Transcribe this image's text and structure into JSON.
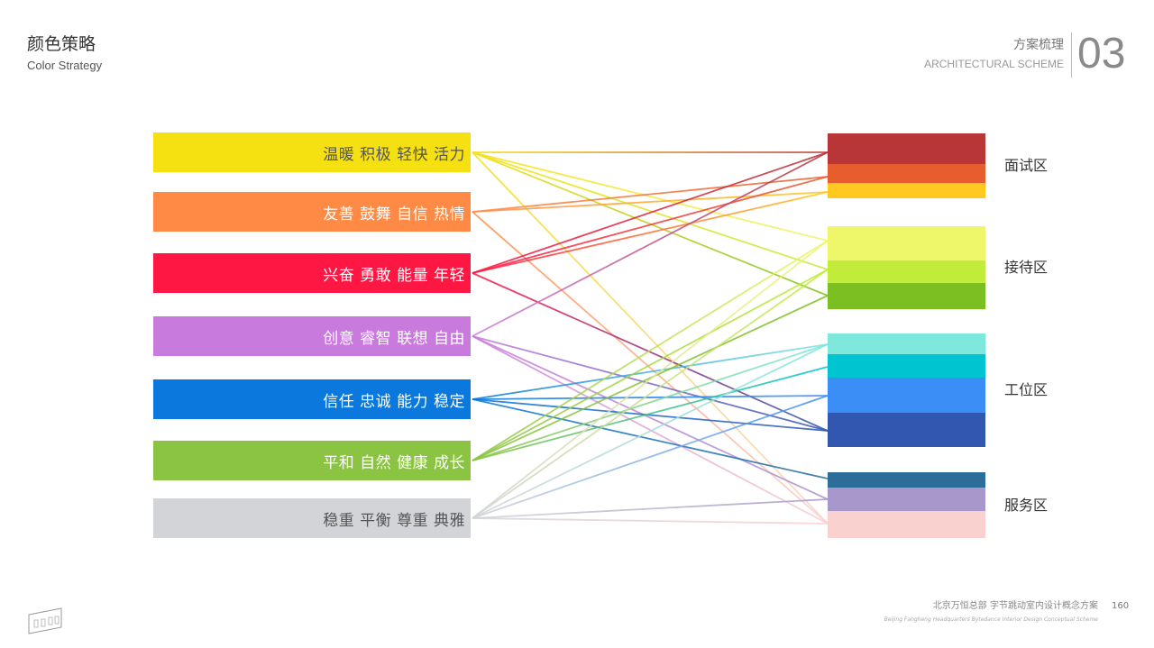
{
  "header": {
    "title": "颜色策略",
    "subtitle": "Color Strategy",
    "section_cn": "方案梳理",
    "section_en": "ARCHITECTURAL SCHEME",
    "section_number": "03"
  },
  "left_bars": [
    {
      "label": "温暖 积极 轻快 活力",
      "color": "#F5E012",
      "text_color": "#555555"
    },
    {
      "label": "友善 鼓舞 自信 热情",
      "color": "#FF8A45",
      "text_color": "#ffffff"
    },
    {
      "label": "兴奋 勇敢 能量 年轻",
      "color": "#FF1744",
      "text_color": "#ffffff"
    },
    {
      "label": "创意 睿智 联想 自由",
      "color": "#C97BDD",
      "text_color": "#ffffff"
    },
    {
      "label": "信任 忠诚 能力 稳定",
      "color": "#0A78DC",
      "text_color": "#ffffff"
    },
    {
      "label": "平和 自然 健康 成长",
      "color": "#8BC443",
      "text_color": "#ffffff"
    },
    {
      "label": "稳重 平衡 尊重 典雅",
      "color": "#D3D4D7",
      "text_color": "#555555"
    }
  ],
  "zones": [
    {
      "label": "面试区",
      "swatches": [
        "#B83538",
        "#E85D2E",
        "#FFC91F"
      ]
    },
    {
      "label": "接待区",
      "swatches": [
        "#EEF76A",
        "#C2EC3A",
        "#7CBF22"
      ]
    },
    {
      "label": "工位区",
      "swatches": [
        "#7EE8DD",
        "#00C4CF",
        "#3C8EF7",
        "#3157B0"
      ]
    },
    {
      "label": "服务区",
      "swatches": [
        "#2C6D9A",
        "#A897CB",
        "#F9D2CF"
      ]
    }
  ],
  "links": [
    [
      0,
      [
        0,
        0
      ]
    ],
    [
      0,
      [
        1,
        0
      ]
    ],
    [
      0,
      [
        1,
        1
      ]
    ],
    [
      0,
      [
        1,
        2
      ]
    ],
    [
      0,
      [
        3,
        2
      ]
    ],
    [
      1,
      [
        0,
        1
      ]
    ],
    [
      1,
      [
        0,
        2
      ]
    ],
    [
      1,
      [
        3,
        2
      ]
    ],
    [
      2,
      [
        0,
        0
      ]
    ],
    [
      2,
      [
        0,
        1
      ]
    ],
    [
      2,
      [
        0,
        2
      ]
    ],
    [
      2,
      [
        2,
        3
      ]
    ],
    [
      3,
      [
        0,
        0
      ]
    ],
    [
      3,
      [
        3,
        1
      ]
    ],
    [
      3,
      [
        3,
        2
      ]
    ],
    [
      3,
      [
        2,
        3
      ]
    ],
    [
      4,
      [
        2,
        0
      ]
    ],
    [
      4,
      [
        2,
        2
      ]
    ],
    [
      4,
      [
        2,
        3
      ]
    ],
    [
      4,
      [
        3,
        0
      ]
    ],
    [
      5,
      [
        1,
        0
      ]
    ],
    [
      5,
      [
        1,
        1
      ]
    ],
    [
      5,
      [
        1,
        2
      ]
    ],
    [
      5,
      [
        2,
        0
      ]
    ],
    [
      5,
      [
        2,
        1
      ]
    ],
    [
      6,
      [
        1,
        0
      ]
    ],
    [
      6,
      [
        1,
        1
      ]
    ],
    [
      6,
      [
        2,
        0
      ]
    ],
    [
      6,
      [
        2,
        2
      ]
    ],
    [
      6,
      [
        3,
        1
      ]
    ],
    [
      6,
      [
        3,
        2
      ]
    ]
  ],
  "footer": {
    "project_cn": "北京万恒总部 字节跳动室内设计概念方案",
    "project_en": "Beijing Fangheng Headquarters Bytedance Interior Design Conceptual Scheme",
    "page": "160",
    "logo_text": "GBBN"
  }
}
